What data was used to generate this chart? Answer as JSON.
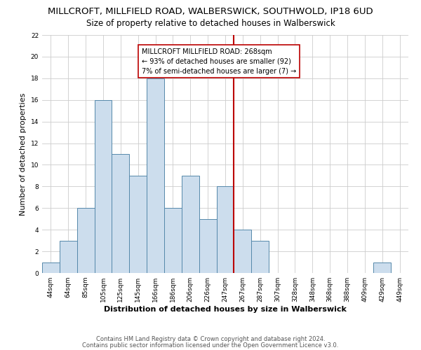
{
  "title": "MILLCROFT, MILLFIELD ROAD, WALBERSWICK, SOUTHWOLD, IP18 6UD",
  "subtitle": "Size of property relative to detached houses in Walberswick",
  "xlabel": "Distribution of detached houses by size in Walberswick",
  "ylabel": "Number of detached properties",
  "bin_labels": [
    "44sqm",
    "64sqm",
    "85sqm",
    "105sqm",
    "125sqm",
    "145sqm",
    "166sqm",
    "186sqm",
    "206sqm",
    "226sqm",
    "247sqm",
    "267sqm",
    "287sqm",
    "307sqm",
    "328sqm",
    "348sqm",
    "368sqm",
    "388sqm",
    "409sqm",
    "429sqm",
    "449sqm"
  ],
  "bar_heights": [
    1,
    3,
    6,
    16,
    11,
    9,
    18,
    6,
    9,
    5,
    8,
    4,
    3,
    0,
    0,
    0,
    0,
    0,
    0,
    1,
    0
  ],
  "bar_color": "#ccdded",
  "bar_edge_color": "#5588aa",
  "grid_color": "#cccccc",
  "reference_line_x": 10.5,
  "reference_line_color": "#bb0000",
  "annotation_text": "MILLCROFT MILLFIELD ROAD: 268sqm\n← 93% of detached houses are smaller (92)\n7% of semi-detached houses are larger (7) →",
  "ylim": [
    0,
    22
  ],
  "yticks": [
    0,
    2,
    4,
    6,
    8,
    10,
    12,
    14,
    16,
    18,
    20,
    22
  ],
  "footer_line1": "Contains HM Land Registry data © Crown copyright and database right 2024.",
  "footer_line2": "Contains public sector information licensed under the Open Government Licence v3.0.",
  "title_fontsize": 9.5,
  "subtitle_fontsize": 8.5,
  "xlabel_fontsize": 8,
  "ylabel_fontsize": 8,
  "tick_fontsize": 6.5,
  "annotation_fontsize": 7,
  "footer_fontsize": 6
}
